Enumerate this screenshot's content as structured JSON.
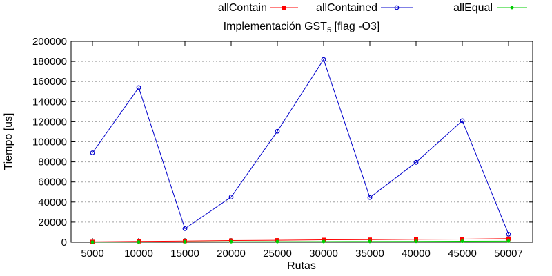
{
  "chart_data": {
    "type": "line",
    "title": "Implementación GST",
    "title_subscript": "5",
    "title_suffix": " [flag -O3]",
    "xlabel": "Rutas",
    "ylabel": "Tiempo [us]",
    "categories": [
      "5000",
      "10000",
      "15000",
      "20000",
      "25000",
      "30000",
      "35000",
      "40000",
      "45000",
      "50007"
    ],
    "ylim": [
      0,
      200000
    ],
    "yticks": [
      0,
      20000,
      40000,
      60000,
      80000,
      100000,
      120000,
      140000,
      160000,
      180000,
      200000
    ],
    "grid": true,
    "legend_position": "top",
    "series": [
      {
        "name": "allContain",
        "color": "#ff0000",
        "marker": "square",
        "values": [
          400,
          900,
          1200,
          1700,
          2000,
          2400,
          2600,
          2900,
          3100,
          3600
        ]
      },
      {
        "name": "allContained",
        "color": "#0000cc",
        "marker": "circle",
        "values": [
          89000,
          154000,
          13500,
          45000,
          110500,
          182000,
          44500,
          79500,
          121000,
          8000
        ]
      },
      {
        "name": "allEqual",
        "color": "#00cc00",
        "marker": "dot",
        "values": [
          200,
          300,
          400,
          500,
          600,
          700,
          800,
          900,
          1000,
          1100
        ]
      }
    ]
  }
}
